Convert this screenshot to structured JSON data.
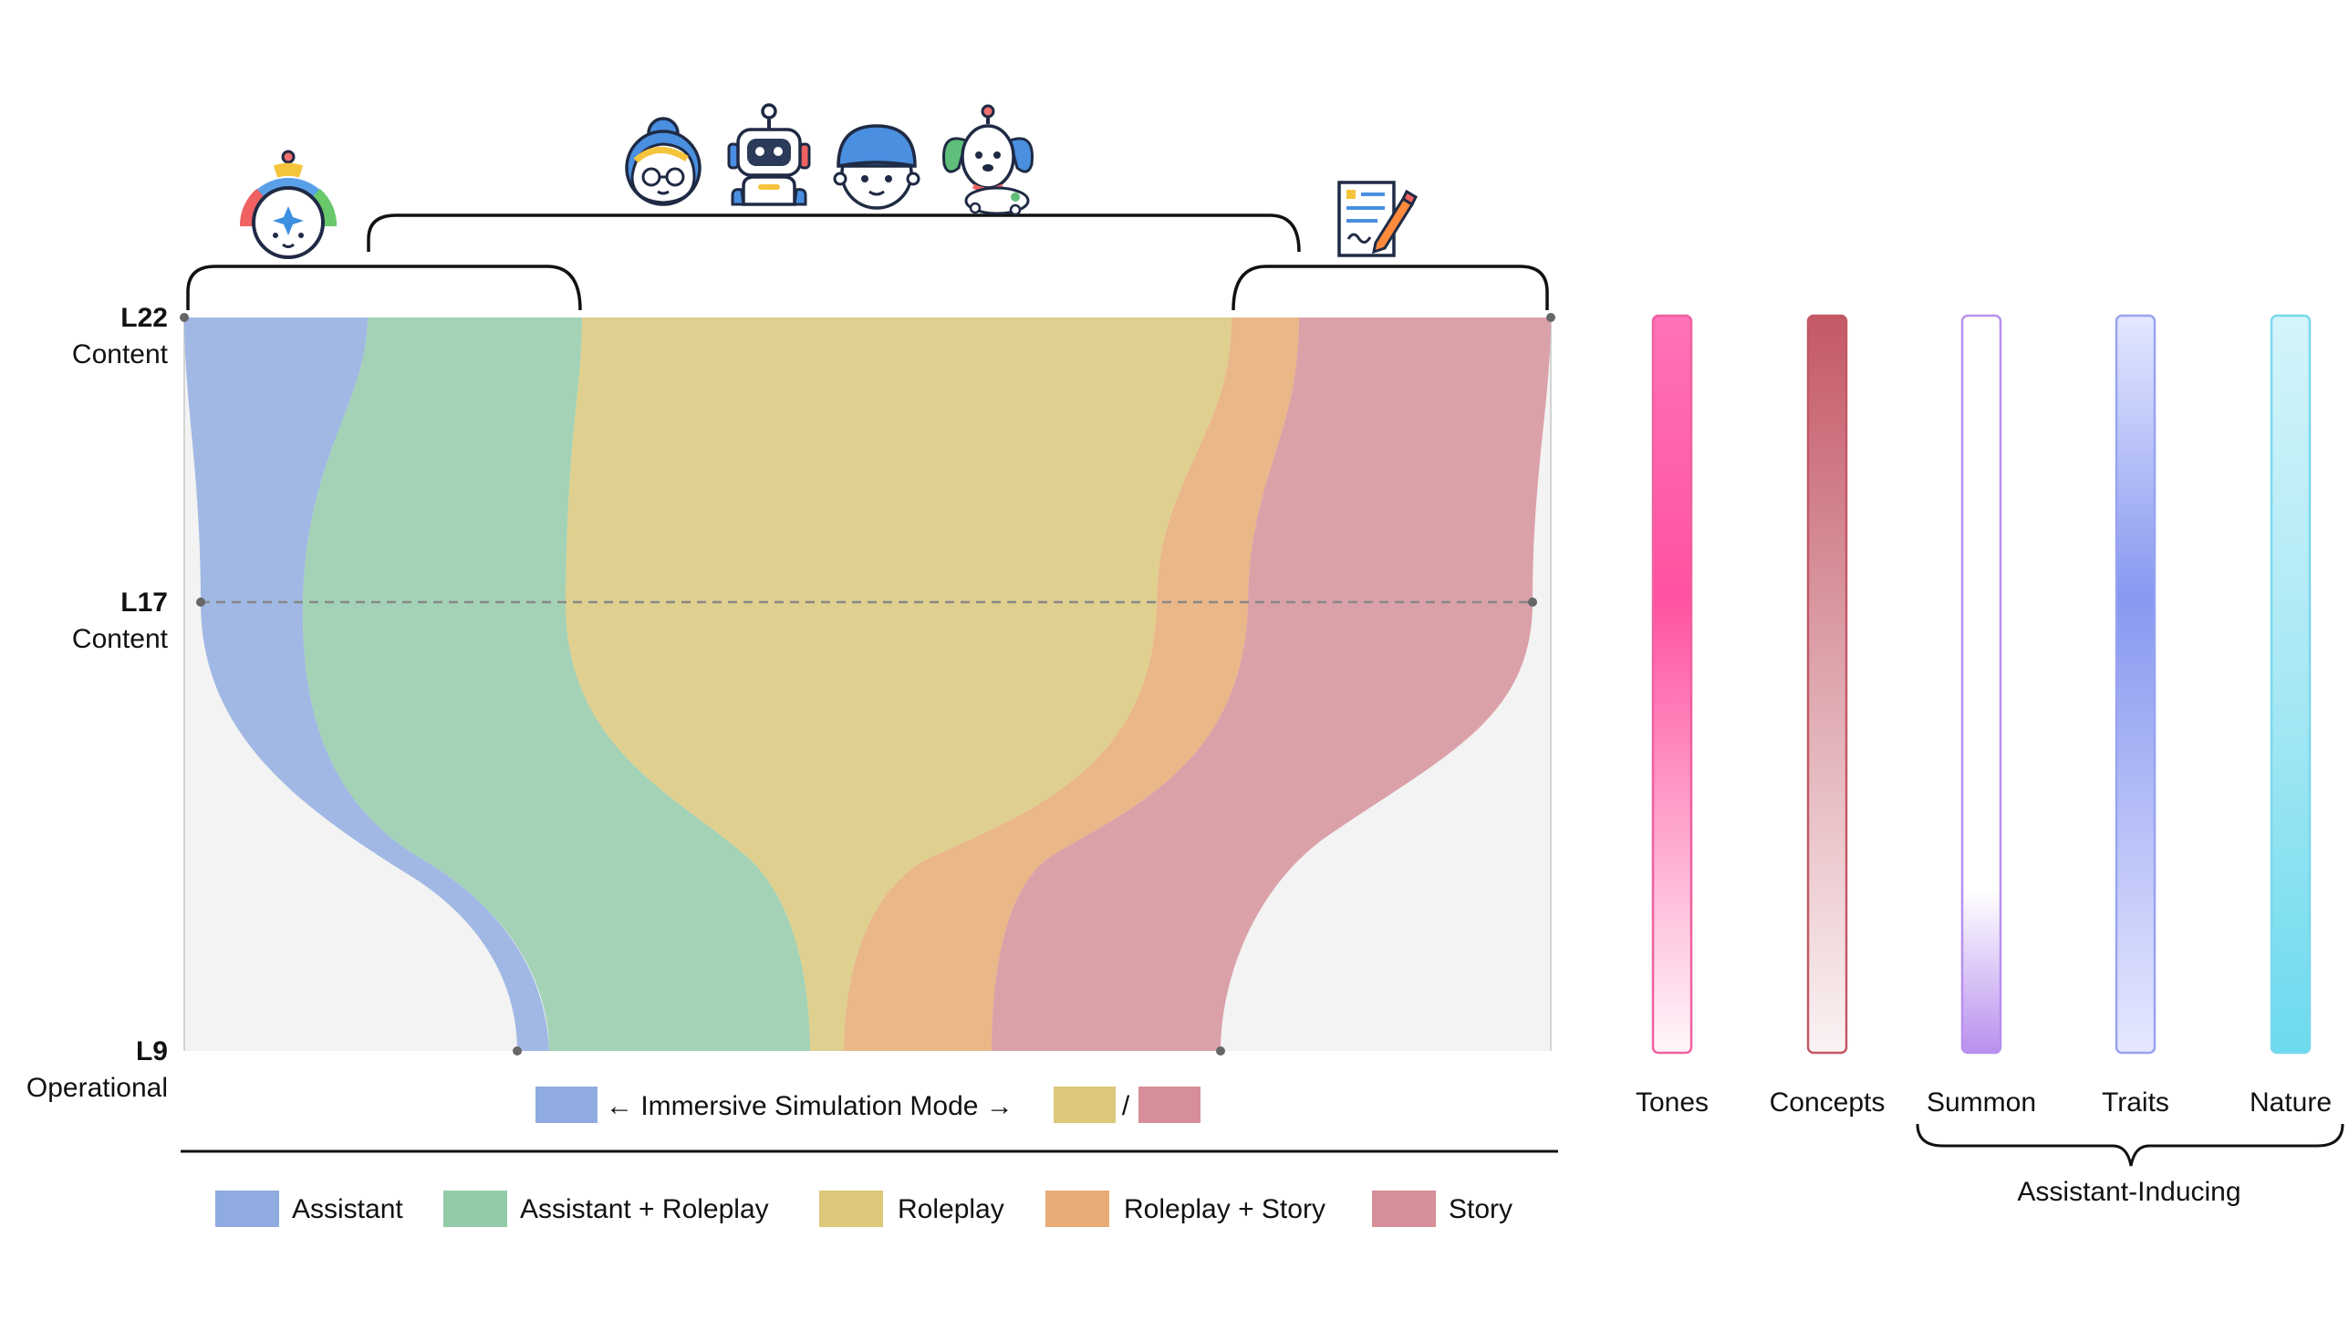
{
  "layers": [
    {
      "id": "L22",
      "name": "L22",
      "kind": "Content"
    },
    {
      "id": "L17",
      "name": "L17",
      "kind": "Content"
    },
    {
      "id": "L9",
      "name": "L9",
      "kind": "Operational"
    }
  ],
  "bands": [
    {
      "name": "Assistant",
      "color": "#8fabe0"
    },
    {
      "name": "Assistant + Roleplay",
      "color": "#93cba8"
    },
    {
      "name": "Roleplay",
      "color": "#dcc87a"
    },
    {
      "name": "Roleplay + Story",
      "color": "#e8ab76"
    },
    {
      "name": "Story",
      "color": "#d68f98"
    }
  ],
  "mode_legend": {
    "label": "← Immersive Simulation Mode →",
    "separator": "/",
    "colors": [
      "#8fabe0",
      "#dcc87a",
      "#d68f98"
    ]
  },
  "legend": [
    {
      "label": "Assistant",
      "color": "#8fabe0"
    },
    {
      "label": "Assistant + Roleplay",
      "color": "#93cba8"
    },
    {
      "label": "Roleplay",
      "color": "#dcc87a"
    },
    {
      "label": "Roleplay + Story",
      "color": "#e8ab76"
    },
    {
      "label": "Story",
      "color": "#d68f98"
    }
  ],
  "gradient_bars": [
    {
      "label": "Tones",
      "top": "#ff72b6",
      "mid": "#ff52a0",
      "bottom": "#fff6fa",
      "border": "#f060a0"
    },
    {
      "label": "Concepts",
      "top": "#c45866",
      "mid": "#dca0a8",
      "bottom": "#fbf3f4",
      "border": "#c45866"
    },
    {
      "label": "Summon",
      "top": "#ffffff",
      "mid": "#ffffff",
      "bottom": "#b890ee",
      "border": "#b890ee"
    },
    {
      "label": "Traits",
      "top": "#e4e8ff",
      "mid": "#8898f0",
      "bottom": "#e6e8ff",
      "border": "#98a4f0"
    },
    {
      "label": "Nature",
      "top": "#d4f4fa",
      "mid": "#a8e8f4",
      "bottom": "#6cdaee",
      "border": "#7ad8ec"
    }
  ],
  "bracket_label": "Assistant-Inducing",
  "icons": [
    {
      "name": "assistant-robot-icon"
    },
    {
      "name": "teacher-character-icon"
    },
    {
      "name": "robot-character-icon"
    },
    {
      "name": "boy-character-icon"
    },
    {
      "name": "dog-character-icon"
    },
    {
      "name": "story-document-icon"
    }
  ]
}
